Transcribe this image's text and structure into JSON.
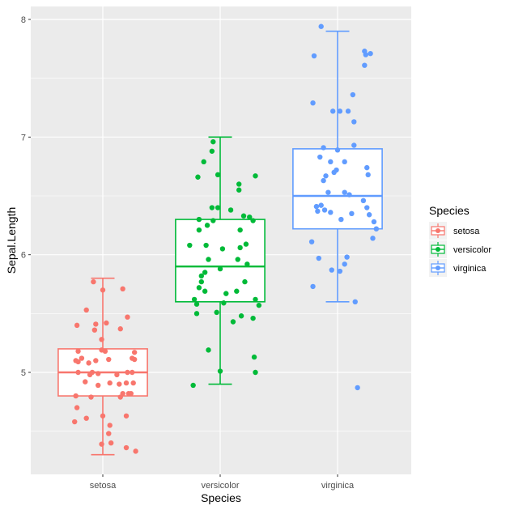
{
  "chart_data": {
    "type": "boxplot",
    "xlabel": "Species",
    "ylabel": "Sepal.Length",
    "categories": [
      "setosa",
      "versicolor",
      "virginica"
    ],
    "yticks": [
      5,
      6,
      7,
      8
    ],
    "ylim": [
      4.2,
      8.1
    ],
    "grid": true,
    "legend": {
      "title": "Species",
      "position": "right",
      "entries": [
        "setosa",
        "versicolor",
        "virginica"
      ]
    },
    "colors": {
      "setosa": "#F8766D",
      "versicolor": "#00BA38",
      "virginica": "#619CFF",
      "panel": "#EBEBEB",
      "grid": "#FFFFFF"
    },
    "series": [
      {
        "name": "setosa",
        "box": {
          "whisker_low": 4.3,
          "q1": 4.8,
          "median": 5.0,
          "q3": 5.2,
          "whisker_high": 5.8
        },
        "points": [
          {
            "x": 0.92,
            "y": 5.77
          },
          {
            "x": 1.0,
            "y": 5.7
          },
          {
            "x": 1.17,
            "y": 5.71
          },
          {
            "x": 0.86,
            "y": 5.53
          },
          {
            "x": 1.21,
            "y": 5.47
          },
          {
            "x": 0.78,
            "y": 5.4
          },
          {
            "x": 0.94,
            "y": 5.41
          },
          {
            "x": 0.93,
            "y": 5.36
          },
          {
            "x": 1.03,
            "y": 5.42
          },
          {
            "x": 1.15,
            "y": 5.37
          },
          {
            "x": 0.99,
            "y": 5.28
          },
          {
            "x": 0.79,
            "y": 5.18
          },
          {
            "x": 0.82,
            "y": 5.12
          },
          {
            "x": 0.99,
            "y": 5.19
          },
          {
            "x": 1.02,
            "y": 5.18
          },
          {
            "x": 1.27,
            "y": 5.17
          },
          {
            "x": 0.77,
            "y": 5.1
          },
          {
            "x": 0.79,
            "y": 5.09
          },
          {
            "x": 0.88,
            "y": 5.08
          },
          {
            "x": 0.94,
            "y": 5.1
          },
          {
            "x": 1.05,
            "y": 5.11
          },
          {
            "x": 1.25,
            "y": 5.12
          },
          {
            "x": 1.27,
            "y": 5.11
          },
          {
            "x": 0.79,
            "y": 5.0
          },
          {
            "x": 0.91,
            "y": 5.0
          },
          {
            "x": 1.21,
            "y": 5.0
          },
          {
            "x": 1.25,
            "y": 5.0
          },
          {
            "x": 0.89,
            "y": 4.98
          },
          {
            "x": 0.96,
            "y": 4.99
          },
          {
            "x": 1.12,
            "y": 4.98
          },
          {
            "x": 0.85,
            "y": 4.92
          },
          {
            "x": 1.06,
            "y": 4.91
          },
          {
            "x": 1.2,
            "y": 4.91
          },
          {
            "x": 1.26,
            "y": 4.91
          },
          {
            "x": 0.96,
            "y": 4.89
          },
          {
            "x": 1.14,
            "y": 4.9
          },
          {
            "x": 0.77,
            "y": 4.8
          },
          {
            "x": 0.9,
            "y": 4.79
          },
          {
            "x": 1.17,
            "y": 4.82
          },
          {
            "x": 1.22,
            "y": 4.82
          },
          {
            "x": 1.24,
            "y": 4.82
          },
          {
            "x": 1.15,
            "y": 4.79
          },
          {
            "x": 0.78,
            "y": 4.7
          },
          {
            "x": 1.0,
            "y": 4.63
          },
          {
            "x": 1.2,
            "y": 4.63
          },
          {
            "x": 0.76,
            "y": 4.58
          },
          {
            "x": 0.86,
            "y": 4.61
          },
          {
            "x": 1.06,
            "y": 4.55
          },
          {
            "x": 1.05,
            "y": 4.48
          },
          {
            "x": 0.99,
            "y": 4.39
          },
          {
            "x": 1.07,
            "y": 4.4
          },
          {
            "x": 1.2,
            "y": 4.36
          },
          {
            "x": 1.28,
            "y": 4.33
          }
        ]
      },
      {
        "name": "versicolor",
        "box": {
          "whisker_low": 4.9,
          "q1": 5.6,
          "median": 5.9,
          "q3": 6.3,
          "whisker_high": 7.0
        },
        "points": [
          {
            "x": 1.94,
            "y": 6.96
          },
          {
            "x": 1.93,
            "y": 6.88
          },
          {
            "x": 1.86,
            "y": 6.79
          },
          {
            "x": 1.81,
            "y": 6.66
          },
          {
            "x": 1.98,
            "y": 6.68
          },
          {
            "x": 2.16,
            "y": 6.6
          },
          {
            "x": 2.16,
            "y": 6.55
          },
          {
            "x": 2.3,
            "y": 6.67
          },
          {
            "x": 1.93,
            "y": 6.4
          },
          {
            "x": 1.98,
            "y": 6.4
          },
          {
            "x": 2.09,
            "y": 6.38
          },
          {
            "x": 2.2,
            "y": 6.33
          },
          {
            "x": 2.25,
            "y": 6.32
          },
          {
            "x": 1.82,
            "y": 6.3
          },
          {
            "x": 1.94,
            "y": 6.29
          },
          {
            "x": 2.28,
            "y": 6.29
          },
          {
            "x": 1.82,
            "y": 6.21
          },
          {
            "x": 1.89,
            "y": 6.25
          },
          {
            "x": 2.17,
            "y": 6.21
          },
          {
            "x": 1.88,
            "y": 6.08
          },
          {
            "x": 2.22,
            "y": 6.09
          },
          {
            "x": 1.74,
            "y": 6.08
          },
          {
            "x": 2.02,
            "y": 6.05
          },
          {
            "x": 2.17,
            "y": 6.06
          },
          {
            "x": 1.9,
            "y": 5.96
          },
          {
            "x": 2.15,
            "y": 5.96
          },
          {
            "x": 2.23,
            "y": 5.92
          },
          {
            "x": 2.0,
            "y": 5.88
          },
          {
            "x": 1.87,
            "y": 5.85
          },
          {
            "x": 1.84,
            "y": 5.82
          },
          {
            "x": 1.84,
            "y": 5.77
          },
          {
            "x": 2.21,
            "y": 5.77
          },
          {
            "x": 1.82,
            "y": 5.72
          },
          {
            "x": 1.87,
            "y": 5.69
          },
          {
            "x": 2.14,
            "y": 5.69
          },
          {
            "x": 2.05,
            "y": 5.67
          },
          {
            "x": 1.78,
            "y": 5.62
          },
          {
            "x": 1.8,
            "y": 5.58
          },
          {
            "x": 2.03,
            "y": 5.59
          },
          {
            "x": 2.3,
            "y": 5.62
          },
          {
            "x": 2.33,
            "y": 5.57
          },
          {
            "x": 1.8,
            "y": 5.5
          },
          {
            "x": 1.97,
            "y": 5.51
          },
          {
            "x": 2.18,
            "y": 5.48
          },
          {
            "x": 2.11,
            "y": 5.43
          },
          {
            "x": 2.28,
            "y": 5.46
          },
          {
            "x": 1.9,
            "y": 5.19
          },
          {
            "x": 2.29,
            "y": 5.13
          },
          {
            "x": 2.0,
            "y": 5.01
          },
          {
            "x": 2.3,
            "y": 5.0
          },
          {
            "x": 1.77,
            "y": 4.89
          }
        ]
      },
      {
        "name": "virginica",
        "box": {
          "whisker_low": 5.6,
          "q1": 6.22,
          "median": 6.5,
          "q3": 6.9,
          "whisker_high": 7.9
        },
        "points": [
          {
            "x": 2.86,
            "y": 7.94
          },
          {
            "x": 2.8,
            "y": 7.69
          },
          {
            "x": 3.23,
            "y": 7.73
          },
          {
            "x": 3.24,
            "y": 7.7
          },
          {
            "x": 3.28,
            "y": 7.71
          },
          {
            "x": 3.23,
            "y": 7.61
          },
          {
            "x": 3.13,
            "y": 7.36
          },
          {
            "x": 2.79,
            "y": 7.29
          },
          {
            "x": 2.96,
            "y": 7.22
          },
          {
            "x": 3.02,
            "y": 7.22
          },
          {
            "x": 3.09,
            "y": 7.22
          },
          {
            "x": 3.14,
            "y": 7.13
          },
          {
            "x": 3.14,
            "y": 6.93
          },
          {
            "x": 2.88,
            "y": 6.91
          },
          {
            "x": 3.0,
            "y": 6.89
          },
          {
            "x": 2.85,
            "y": 6.83
          },
          {
            "x": 2.94,
            "y": 6.79
          },
          {
            "x": 3.06,
            "y": 6.79
          },
          {
            "x": 3.25,
            "y": 6.74
          },
          {
            "x": 2.99,
            "y": 6.72
          },
          {
            "x": 3.26,
            "y": 6.68
          },
          {
            "x": 2.97,
            "y": 6.7
          },
          {
            "x": 2.9,
            "y": 6.67
          },
          {
            "x": 2.88,
            "y": 6.63
          },
          {
            "x": 2.92,
            "y": 6.53
          },
          {
            "x": 3.06,
            "y": 6.53
          },
          {
            "x": 3.1,
            "y": 6.51
          },
          {
            "x": 3.22,
            "y": 6.46
          },
          {
            "x": 2.82,
            "y": 6.41
          },
          {
            "x": 2.86,
            "y": 6.42
          },
          {
            "x": 3.25,
            "y": 6.4
          },
          {
            "x": 2.83,
            "y": 6.37
          },
          {
            "x": 2.89,
            "y": 6.38
          },
          {
            "x": 2.94,
            "y": 6.36
          },
          {
            "x": 3.12,
            "y": 6.35
          },
          {
            "x": 3.03,
            "y": 6.3
          },
          {
            "x": 3.27,
            "y": 6.34
          },
          {
            "x": 3.31,
            "y": 6.28
          },
          {
            "x": 3.33,
            "y": 6.22
          },
          {
            "x": 3.3,
            "y": 6.14
          },
          {
            "x": 2.78,
            "y": 6.11
          },
          {
            "x": 3.08,
            "y": 5.98
          },
          {
            "x": 3.06,
            "y": 5.92
          },
          {
            "x": 2.84,
            "y": 5.97
          },
          {
            "x": 2.95,
            "y": 5.87
          },
          {
            "x": 3.02,
            "y": 5.86
          },
          {
            "x": 2.79,
            "y": 5.73
          },
          {
            "x": 3.15,
            "y": 5.6
          },
          {
            "x": 3.17,
            "y": 4.87
          }
        ]
      }
    ]
  }
}
